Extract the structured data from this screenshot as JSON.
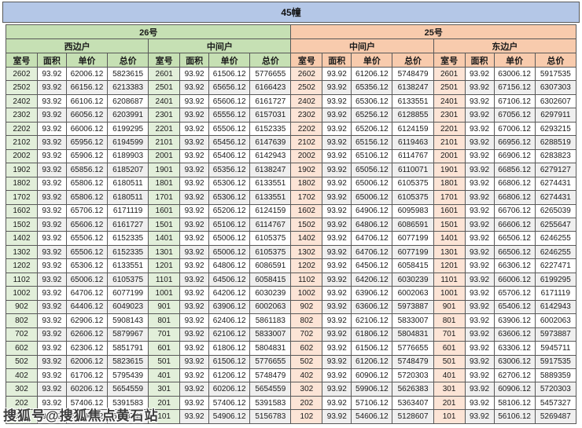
{
  "page": {
    "title": "45幢",
    "watermark": "搜狐号@搜狐焦点黄石站"
  },
  "colors": {
    "title_bg": "#b4c7e7",
    "green_header": "#c6e0b4",
    "green_light": "#e2efda",
    "orange_header": "#f8cbad",
    "orange_light": "#fce4d6",
    "header_text": "#c00000",
    "border": "#595959",
    "alt_row": "#efefef"
  },
  "col_headers": [
    "室号",
    "面积",
    "单价",
    "总价"
  ],
  "sections": [
    {
      "name": "26号",
      "theme": "green",
      "units": [
        {
          "name": "西边户",
          "rows": [
            [
              "2602",
              "93.92",
              "62006.12",
              "5823615"
            ],
            [
              "2502",
              "93.92",
              "66156.12",
              "6213383"
            ],
            [
              "2402",
              "93.92",
              "66106.12",
              "6208687"
            ],
            [
              "2302",
              "93.92",
              "66056.12",
              "6203991"
            ],
            [
              "2202",
              "93.92",
              "66006.12",
              "6199295"
            ],
            [
              "2102",
              "93.92",
              "65956.12",
              "6194599"
            ],
            [
              "2002",
              "93.92",
              "65906.12",
              "6189903"
            ],
            [
              "1902",
              "93.92",
              "65856.12",
              "6185207"
            ],
            [
              "1802",
              "93.92",
              "65806.12",
              "6180511"
            ],
            [
              "1702",
              "93.92",
              "65806.12",
              "6180511"
            ],
            [
              "1602",
              "93.92",
              "65706.12",
              "6171119"
            ],
            [
              "1502",
              "93.92",
              "65606.12",
              "6161727"
            ],
            [
              "1402",
              "93.92",
              "65506.12",
              "6152335"
            ],
            [
              "1302",
              "93.92",
              "65506.12",
              "6152335"
            ],
            [
              "1202",
              "93.92",
              "65306.12",
              "6133551"
            ],
            [
              "1102",
              "93.92",
              "65006.12",
              "6105375"
            ],
            [
              "1002",
              "93.92",
              "64706.12",
              "6077199"
            ],
            [
              "902",
              "93.92",
              "64406.12",
              "6049023"
            ],
            [
              "802",
              "93.92",
              "62906.12",
              "5908143"
            ],
            [
              "702",
              "93.92",
              "62606.12",
              "5879967"
            ],
            [
              "602",
              "93.92",
              "62306.12",
              "5851791"
            ],
            [
              "502",
              "93.92",
              "62006.12",
              "5823615"
            ],
            [
              "402",
              "93.92",
              "61706.12",
              "5795439"
            ],
            [
              "302",
              "93.92",
              "60206.12",
              "5654559"
            ],
            [
              "202",
              "93.92",
              "57406.12",
              "5391583"
            ],
            [
              "102",
              "93.92",
              "55406.12",
              "5203743"
            ]
          ]
        },
        {
          "name": "中间户",
          "rows": [
            [
              "2601",
              "93.92",
              "61506.12",
              "5776655"
            ],
            [
              "2501",
              "93.92",
              "65656.12",
              "6166423"
            ],
            [
              "2401",
              "93.92",
              "65606.12",
              "6161727"
            ],
            [
              "2301",
              "93.92",
              "65556.12",
              "6157031"
            ],
            [
              "2201",
              "93.92",
              "65506.12",
              "6152335"
            ],
            [
              "2101",
              "93.92",
              "65456.12",
              "6147639"
            ],
            [
              "2001",
              "93.92",
              "65406.12",
              "6142943"
            ],
            [
              "1901",
              "93.92",
              "65356.12",
              "6138247"
            ],
            [
              "1801",
              "93.92",
              "65306.12",
              "6133551"
            ],
            [
              "1701",
              "93.92",
              "65306.12",
              "6133551"
            ],
            [
              "1601",
              "93.92",
              "65206.12",
              "6124159"
            ],
            [
              "1501",
              "93.92",
              "65106.12",
              "6114767"
            ],
            [
              "1401",
              "93.92",
              "65006.12",
              "6105375"
            ],
            [
              "1301",
              "93.92",
              "65006.12",
              "6105375"
            ],
            [
              "1201",
              "93.92",
              "64806.12",
              "6086591"
            ],
            [
              "1101",
              "93.92",
              "64506.12",
              "6058415"
            ],
            [
              "1001",
              "93.92",
              "64206.12",
              "6030239"
            ],
            [
              "901",
              "93.92",
              "63906.12",
              "6002063"
            ],
            [
              "801",
              "93.92",
              "62406.12",
              "5861183"
            ],
            [
              "701",
              "93.92",
              "62106.12",
              "5833007"
            ],
            [
              "601",
              "93.92",
              "61806.12",
              "5804831"
            ],
            [
              "501",
              "93.92",
              "61506.12",
              "5776655"
            ],
            [
              "401",
              "93.92",
              "61206.12",
              "5748479"
            ],
            [
              "301",
              "93.92",
              "60206.12",
              "5654559"
            ],
            [
              "201",
              "93.92",
              "57406.12",
              "5391583"
            ],
            [
              "101",
              "93.92",
              "54906.12",
              "5156783"
            ]
          ]
        }
      ]
    },
    {
      "name": "25号",
      "theme": "orange",
      "units": [
        {
          "name": "中间户",
          "rows": [
            [
              "2602",
              "93.92",
              "61206.12",
              "5748479"
            ],
            [
              "2502",
              "93.92",
              "65356.12",
              "6138247"
            ],
            [
              "2402",
              "93.92",
              "65306.12",
              "6133551"
            ],
            [
              "2302",
              "93.92",
              "65256.12",
              "6128855"
            ],
            [
              "2202",
              "93.92",
              "65206.12",
              "6124159"
            ],
            [
              "2102",
              "93.92",
              "65156.12",
              "6119463"
            ],
            [
              "2002",
              "93.92",
              "65106.12",
              "6114767"
            ],
            [
              "1902",
              "93.92",
              "65056.12",
              "6110071"
            ],
            [
              "1802",
              "93.92",
              "65006.12",
              "6105375"
            ],
            [
              "1702",
              "93.92",
              "65006.12",
              "6105375"
            ],
            [
              "1602",
              "93.92",
              "64906.12",
              "6095983"
            ],
            [
              "1502",
              "93.92",
              "64806.12",
              "6086591"
            ],
            [
              "1402",
              "93.92",
              "64706.12",
              "6077199"
            ],
            [
              "1302",
              "93.92",
              "64706.12",
              "6077199"
            ],
            [
              "1202",
              "93.92",
              "64506.12",
              "6058415"
            ],
            [
              "1102",
              "93.92",
              "64206.12",
              "6030239"
            ],
            [
              "1002",
              "93.92",
              "63906.12",
              "6002063"
            ],
            [
              "902",
              "93.92",
              "63606.12",
              "5973887"
            ],
            [
              "802",
              "93.92",
              "62106.12",
              "5833007"
            ],
            [
              "702",
              "93.92",
              "61806.12",
              "5804831"
            ],
            [
              "602",
              "93.92",
              "61506.12",
              "5776655"
            ],
            [
              "502",
              "93.92",
              "61206.12",
              "5748479"
            ],
            [
              "402",
              "93.92",
              "60906.12",
              "5720303"
            ],
            [
              "302",
              "93.92",
              "59906.12",
              "5626383"
            ],
            [
              "202",
              "93.92",
              "57106.12",
              "5363407"
            ],
            [
              "102",
              "93.92",
              "54606.12",
              "5128607"
            ]
          ]
        },
        {
          "name": "东边户",
          "rows": [
            [
              "2601",
              "93.92",
              "63006.12",
              "5917535"
            ],
            [
              "2501",
              "93.92",
              "67156.12",
              "6307303"
            ],
            [
              "2401",
              "93.92",
              "67106.12",
              "6302607"
            ],
            [
              "2301",
              "93.92",
              "67056.12",
              "6297911"
            ],
            [
              "2201",
              "93.92",
              "67006.12",
              "6293215"
            ],
            [
              "2101",
              "93.92",
              "66956.12",
              "6288519"
            ],
            [
              "2001",
              "93.92",
              "66906.12",
              "6283823"
            ],
            [
              "1901",
              "93.92",
              "66856.12",
              "6279127"
            ],
            [
              "1801",
              "93.92",
              "66806.12",
              "6274431"
            ],
            [
              "1701",
              "93.92",
              "66806.12",
              "6274431"
            ],
            [
              "1601",
              "93.92",
              "66706.12",
              "6265039"
            ],
            [
              "1501",
              "93.92",
              "66606.12",
              "6255647"
            ],
            [
              "1401",
              "93.92",
              "66506.12",
              "6246255"
            ],
            [
              "1301",
              "93.92",
              "66506.12",
              "6246255"
            ],
            [
              "1201",
              "93.92",
              "66306.12",
              "6227471"
            ],
            [
              "1101",
              "93.92",
              "66006.12",
              "6199295"
            ],
            [
              "1001",
              "93.92",
              "65706.12",
              "6171119"
            ],
            [
              "901",
              "93.92",
              "65406.12",
              "6142943"
            ],
            [
              "801",
              "93.92",
              "63906.12",
              "6002063"
            ],
            [
              "701",
              "93.92",
              "63606.12",
              "5973887"
            ],
            [
              "601",
              "93.92",
              "63306.12",
              "5945711"
            ],
            [
              "501",
              "93.92",
              "63006.12",
              "5917535"
            ],
            [
              "401",
              "93.92",
              "62706.12",
              "5889359"
            ],
            [
              "301",
              "93.92",
              "60906.12",
              "5720303"
            ],
            [
              "201",
              "93.92",
              "58106.12",
              "5457327"
            ],
            [
              "101",
              "93.92",
              "56106.12",
              "5269487"
            ]
          ]
        }
      ]
    }
  ]
}
